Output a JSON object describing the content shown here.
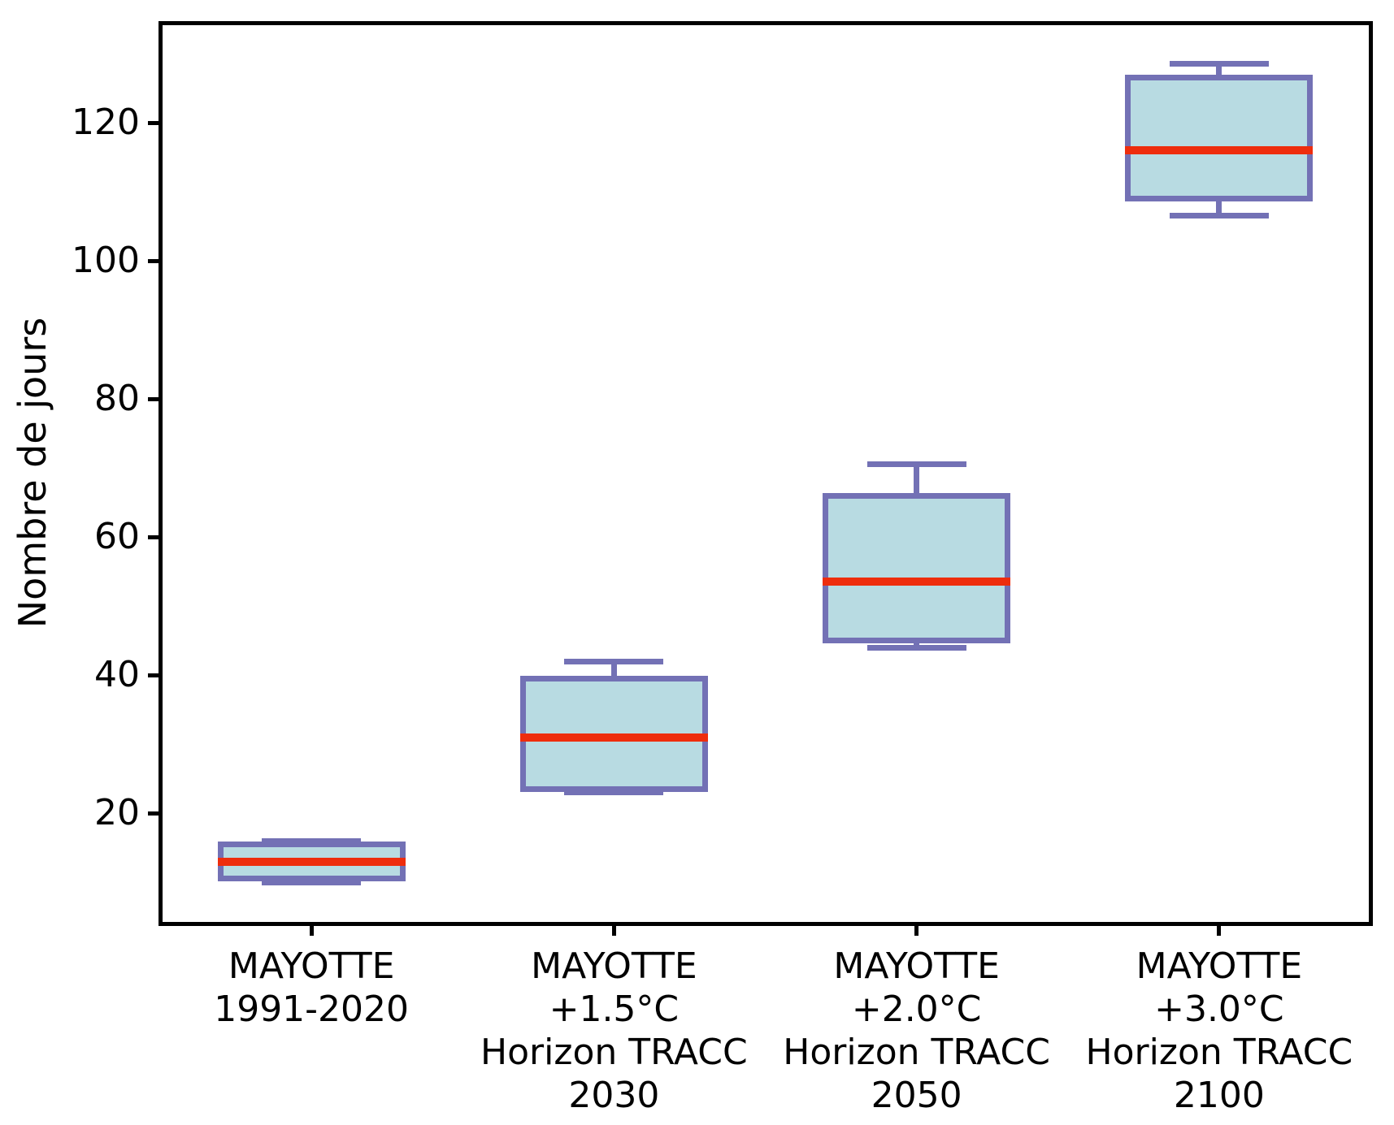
{
  "chart_data": {
    "type": "boxplot",
    "title": "",
    "xlabel": "",
    "ylabel": "Nombre de jours",
    "ylim": [
      4,
      134.5
    ],
    "yticks": [
      20,
      40,
      60,
      80,
      100,
      120
    ],
    "grid": false,
    "legend": null,
    "categories": [
      {
        "label_lines": [
          "MAYOTTE",
          "1991-2020"
        ],
        "whislo": 10,
        "q1": 10.5,
        "med": 13,
        "q3": 15.5,
        "whishi": 16
      },
      {
        "label_lines": [
          "MAYOTTE",
          "+1.5°C",
          "Horizon TRACC",
          "2030"
        ],
        "whislo": 23,
        "q1": 23.5,
        "med": 31,
        "q3": 39.5,
        "whishi": 42
      },
      {
        "label_lines": [
          "MAYOTTE",
          "+2.0°C",
          "Horizon TRACC",
          "2050"
        ],
        "whislo": 44,
        "q1": 45,
        "med": 53.5,
        "q3": 66,
        "whishi": 70.5
      },
      {
        "label_lines": [
          "MAYOTTE",
          "+3.0°C",
          "Horizon TRACC",
          "2100"
        ],
        "whislo": 106.5,
        "q1": 109,
        "med": 116,
        "q3": 126.5,
        "whishi": 128.5
      }
    ],
    "colors": {
      "box_fill": "#B8DBE2",
      "box_edge": "#7371B5",
      "median": "#EE2D0D",
      "axis": "#000000",
      "text": "#000000",
      "background": "#FFFFFF"
    }
  }
}
